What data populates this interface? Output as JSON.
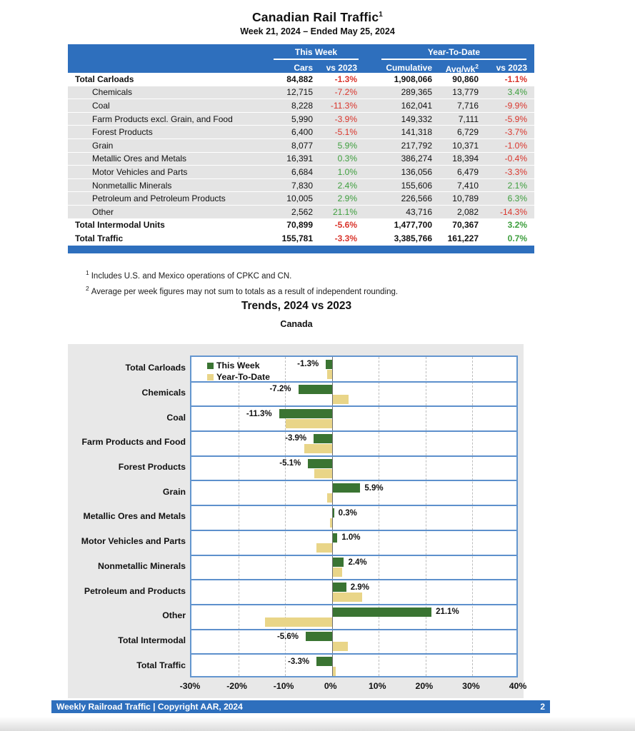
{
  "page": {
    "title": "Canadian Rail Traffic",
    "title_superscript": "1",
    "subtitle": "Week 21, 2024 – Ended May 25, 2024",
    "footnotes": [
      {
        "sup": "1",
        "text": "Includes U.S. and Mexico operations of CPKC and CN."
      },
      {
        "sup": "2",
        "text": "Average per week figures may not sum to totals as a result of independent rounding."
      }
    ],
    "footer": {
      "left": "Weekly Railroad Traffic | Copyright AAR, 2024",
      "page": "2"
    }
  },
  "table": {
    "group_headers": {
      "this_week": "This Week",
      "year_to_date": "Year-To-Date"
    },
    "columns": [
      "Cars",
      "vs 2023",
      "Cumulative",
      "Avg/wk",
      "vs 2023"
    ],
    "avg_wk_superscript": "2",
    "rows": [
      {
        "label": "Total Carloads",
        "bold": true,
        "cars": "84,882",
        "wk_vs": "-1.3%",
        "cumulative": "1,908,066",
        "avg_wk": "90,860",
        "ytd_vs": "-1.1%"
      },
      {
        "label": "Chemicals",
        "bold": false,
        "cars": "12,715",
        "wk_vs": "-7.2%",
        "cumulative": "289,365",
        "avg_wk": "13,779",
        "ytd_vs": "3.4%"
      },
      {
        "label": "Coal",
        "bold": false,
        "cars": "8,228",
        "wk_vs": "-11.3%",
        "cumulative": "162,041",
        "avg_wk": "7,716",
        "ytd_vs": "-9.9%"
      },
      {
        "label": "Farm Products excl. Grain, and Food",
        "bold": false,
        "cars": "5,990",
        "wk_vs": "-3.9%",
        "cumulative": "149,332",
        "avg_wk": "7,111",
        "ytd_vs": "-5.9%"
      },
      {
        "label": "Forest Products",
        "bold": false,
        "cars": "6,400",
        "wk_vs": "-5.1%",
        "cumulative": "141,318",
        "avg_wk": "6,729",
        "ytd_vs": "-3.7%"
      },
      {
        "label": "Grain",
        "bold": false,
        "cars": "8,077",
        "wk_vs": "5.9%",
        "cumulative": "217,792",
        "avg_wk": "10,371",
        "ytd_vs": "-1.0%"
      },
      {
        "label": "Metallic Ores and Metals",
        "bold": false,
        "cars": "16,391",
        "wk_vs": "0.3%",
        "cumulative": "386,274",
        "avg_wk": "18,394",
        "ytd_vs": "-0.4%"
      },
      {
        "label": "Motor Vehicles and Parts",
        "bold": false,
        "cars": "6,684",
        "wk_vs": "1.0%",
        "cumulative": "136,056",
        "avg_wk": "6,479",
        "ytd_vs": "-3.3%"
      },
      {
        "label": "Nonmetallic Minerals",
        "bold": false,
        "cars": "7,830",
        "wk_vs": "2.4%",
        "cumulative": "155,606",
        "avg_wk": "7,410",
        "ytd_vs": "2.1%"
      },
      {
        "label": "Petroleum and Petroleum Products",
        "bold": false,
        "cars": "10,005",
        "wk_vs": "2.9%",
        "cumulative": "226,566",
        "avg_wk": "10,789",
        "ytd_vs": "6.3%"
      },
      {
        "label": "Other",
        "bold": false,
        "cars": "2,562",
        "wk_vs": "21.1%",
        "cumulative": "43,716",
        "avg_wk": "2,082",
        "ytd_vs": "-14.3%"
      },
      {
        "label": "Total Intermodal Units",
        "bold": true,
        "cars": "70,899",
        "wk_vs": "-5.6%",
        "cumulative": "1,477,700",
        "avg_wk": "70,367",
        "ytd_vs": "3.2%"
      },
      {
        "label": "Total Traffic",
        "bold": true,
        "cars": "155,781",
        "wk_vs": "-3.3%",
        "cumulative": "3,385,766",
        "avg_wk": "161,227",
        "ytd_vs": "0.7%"
      }
    ]
  },
  "chart": {
    "title": "Trends, 2024 vs 2023",
    "subtitle": "Canada"
  },
  "chart_data": {
    "type": "bar",
    "orientation": "horizontal",
    "title": "Trends, 2024 vs 2023",
    "subtitle": "Canada",
    "categories": [
      "Total Carloads",
      "Chemicals",
      "Coal",
      "Farm Products and Food",
      "Forest Products",
      "Grain",
      "Metallic Ores and Metals",
      "Motor Vehicles and Parts",
      "Nonmetallic Minerals",
      "Petroleum and Products",
      "Other",
      "Total Intermodal",
      "Total Traffic"
    ],
    "series": [
      {
        "name": "This Week",
        "color": "#3a7432",
        "values": [
          -1.3,
          -7.2,
          -11.3,
          -3.9,
          -5.1,
          5.9,
          0.3,
          1.0,
          2.4,
          2.9,
          21.1,
          -5.6,
          -3.3
        ]
      },
      {
        "name": "Year-To-Date",
        "color": "#e9d588",
        "values": [
          -1.1,
          3.4,
          -9.9,
          -5.9,
          -3.7,
          -1.0,
          -0.4,
          -3.3,
          2.1,
          6.3,
          -14.3,
          3.2,
          0.7
        ]
      }
    ],
    "bar_labels": [
      "-1.3%",
      "-7.2%",
      "-11.3%",
      "-3.9%",
      "-5.1%",
      "5.9%",
      "0.3%",
      "1.0%",
      "2.4%",
      "2.9%",
      "21.1%",
      "-5.6%",
      "-3.3%"
    ],
    "xlim": [
      -30,
      40
    ],
    "x_tick_values": [
      -30,
      -20,
      -10,
      0,
      10,
      20,
      30,
      40
    ],
    "x_tick_labels": [
      "-30%",
      "-20%",
      "-10%",
      "0%",
      "10%",
      "20%",
      "30%",
      "40%"
    ],
    "legend_position": "top-left",
    "grid": "vertical-dashed"
  },
  "colors": {
    "header_blue": "#2e6fbd",
    "negative_red": "#d9342b",
    "positive_green": "#3d9e3d",
    "row_stripe": "#e4e4e4",
    "panel_gray": "#e8e8e8",
    "bar_green": "#3a7432",
    "bar_tan": "#e9d588",
    "chart_line_blue": "#5d90cc"
  }
}
